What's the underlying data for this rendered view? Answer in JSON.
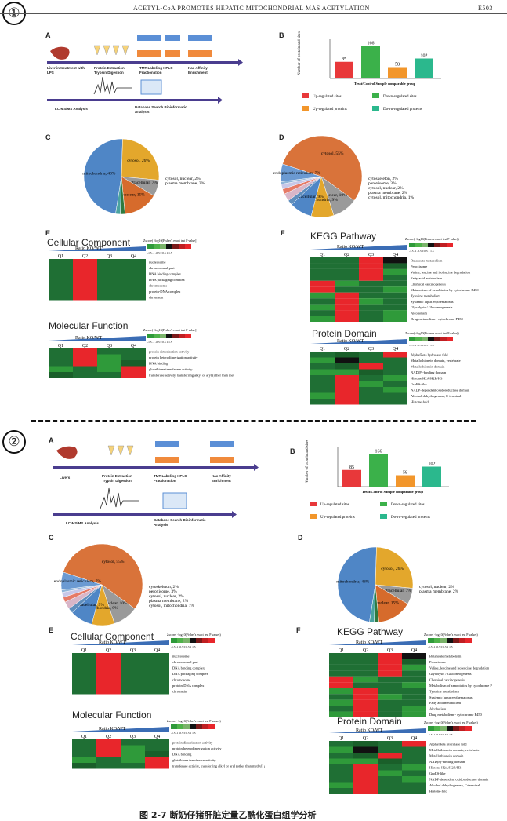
{
  "header": {
    "title": "ACETYL-CoA PROMOTES HEPATIC MITOCHONDRIAL MAS ACETYLATION",
    "page": "E503"
  },
  "markers": {
    "one": "①",
    "two": "②"
  },
  "caption": "图 2-7  断奶仔猪肝脏定量乙酰化蛋白组学分析",
  "workflow": {
    "steps1": [
      "Liver in treatment with LPS",
      "Protein Extraction Trypsin Digestion",
      "TMT Labeling HPLC Fractionation",
      "Kac Affinity Enrichment"
    ],
    "steps2": [
      "Livers",
      "Protein Extraction Trypsin Digestion",
      "TMT Labeling HPLC Fractionation",
      "Kac Affinity Enrichment"
    ],
    "bottom": [
      "LC-MS/MS Analysis",
      "Database Search Bioinformatic Analysis"
    ]
  },
  "labels": {
    "A": "A",
    "B": "B",
    "C": "C",
    "D": "D",
    "E": "E",
    "F": "F"
  },
  "titles": {
    "cc": "Cellular Component",
    "mf": "Molecular Function",
    "kegg": "KEGG Pathway",
    "pd": "Protein Domain"
  },
  "heat": {
    "ratio": "Ratio KO/WT",
    "q": [
      "Q1",
      "Q2",
      "Q3",
      "Q4"
    ],
    "legend_title": "Zscore( -log10(Fisher's exact test P value))",
    "legend_ticks": "-1.5 -1 -0.5 0 0.5 1 1.5",
    "cc_rows": [
      "nucleosome",
      "chromosomal part",
      "DNA binding complex",
      "DNA packaging complex",
      "chromosome",
      "protein-DNA complex",
      "chromatin"
    ],
    "mf_rows": [
      "protein dimerization activity",
      "protein heterodimerization activity",
      "DNA binding",
      "glutathione transferase activity",
      "transferase activity, transferring alkyl or aryl (other than methyl) groups"
    ],
    "kegg_rows": [
      "Butanoate metabolism",
      "Peroxisome",
      "Valine, leucine and isoleucine degradation",
      "Fatty acid metabolism",
      "Chemical carcinogenesis",
      "Metabolism of xenobiotics by cytochrome P450",
      "Tyrosine metabolism",
      "Systemic lupus erythematosus",
      "Glycolysis / Gluconeogenesis",
      "Alcoholism",
      "Drug metabolism - cytochrome P450"
    ],
    "kegg_rows2": [
      "Butanoate metabolism",
      "Peroxisome",
      "Valine, leucine and isoleucine degradation",
      "Glycolysis / Gluconeogenesis",
      "Chemical carcinogenesis",
      "Metabolism of xenobiotics by cytochrome P",
      "Tyrosine metabolism",
      "Systemic lupus erythematosus",
      "Fatty acid metabolism",
      "Alcoholism",
      "Drug metabolism - cytochrome P450"
    ],
    "pd_rows": [
      "Alpha/Beta hydrolase fold",
      "Metallothionein domain, vertebrate",
      "Metallothionein domain",
      "NAD(P)-binding domain",
      "Histone H2A/H2B/H3",
      "GroES-like",
      "NADP-dependent oxidoreductase domain",
      "Alcohol dehydrogenase, C-terminal",
      "Histone-fold"
    ],
    "cc_grid": [
      [
        0,
        2,
        0,
        0
      ],
      [
        0,
        2,
        0,
        0
      ],
      [
        0,
        2,
        0,
        0
      ],
      [
        0,
        2,
        0,
        0
      ],
      [
        0,
        2,
        0,
        0
      ],
      [
        0,
        2,
        0,
        0
      ],
      [
        0,
        2,
        0,
        0
      ]
    ],
    "mf_grid": [
      [
        0,
        2,
        0,
        0
      ],
      [
        0,
        2,
        1,
        0
      ],
      [
        0,
        2,
        1,
        -1
      ],
      [
        1,
        0,
        1,
        2
      ],
      [
        -1,
        0,
        0,
        2
      ]
    ],
    "kegg_grid": [
      [
        0,
        0,
        2,
        -2
      ],
      [
        0,
        0,
        2,
        -1
      ],
      [
        0,
        0,
        2,
        1
      ],
      [
        0,
        0,
        2,
        0
      ],
      [
        2,
        1,
        0,
        0
      ],
      [
        2,
        0,
        0,
        1
      ],
      [
        1,
        2,
        0,
        0
      ],
      [
        0,
        2,
        1,
        0
      ],
      [
        1,
        2,
        0,
        0
      ],
      [
        0,
        2,
        0,
        1
      ],
      [
        1,
        2,
        0,
        1
      ]
    ],
    "pd_grid": [
      [
        0,
        -1,
        0,
        2
      ],
      [
        1,
        -2,
        0,
        0
      ],
      [
        0,
        -1,
        2,
        0
      ],
      [
        1,
        1,
        -1,
        0
      ],
      [
        0,
        2,
        0,
        1
      ],
      [
        0,
        2,
        1,
        0
      ],
      [
        0,
        2,
        0,
        1
      ],
      [
        1,
        2,
        0,
        0
      ],
      [
        0,
        2,
        0,
        0
      ]
    ]
  },
  "chart_data": [
    {
      "type": "bar",
      "categories": [
        "Up-regulated sites",
        "Down-regulated sites",
        "Up-regulated proteins",
        "Down-regulated proteins"
      ],
      "values": [
        85,
        166,
        58,
        102
      ],
      "xlabel": "Treat/Control Sample comparable group",
      "ylabel": "Number of protein and sites",
      "ylim": [
        0,
        200
      ],
      "colors": [
        "#e8383a",
        "#3bb14a",
        "#f2962b",
        "#2bb88d"
      ]
    },
    {
      "type": "pie",
      "title": "",
      "labels": [
        "mitochondria",
        "cytosol",
        "extracellular",
        "nuclear",
        "cytosol, nuclear",
        "plasma membrane"
      ],
      "values": [
        48,
        26,
        7,
        15,
        2,
        2
      ],
      "display": [
        "mitochondria, 48%",
        "cytosol, 26%",
        "extracellular, 7%",
        "nuclear, 15%",
        "cytosol, nuclear, 2%",
        "plasma membrane, 2%"
      ]
    },
    {
      "type": "pie",
      "title": "",
      "labels": [
        "cytosol",
        "nuclear",
        "mitochondria",
        "extracellular",
        "cytoskeleton",
        "peroxisome",
        "cytosol, nuclear",
        "plasma membrane",
        "cytosol, mitochondria",
        "endoplasmic reticulum"
      ],
      "values": [
        55,
        10,
        9,
        9,
        2,
        3,
        2,
        2,
        1,
        7
      ],
      "display": [
        "cytosol, 55%",
        "nuclear, 10%",
        "mitochondria, 9%",
        "extracellular, 9%",
        "cytoskeleton, 2%",
        "peroxisome, 3%",
        "cytosol, nuclear, 2%",
        "plasma membrane, 2%",
        "cytosol, mitochondria, 1%",
        "endoplasmic reticulum, 7%"
      ]
    }
  ]
}
